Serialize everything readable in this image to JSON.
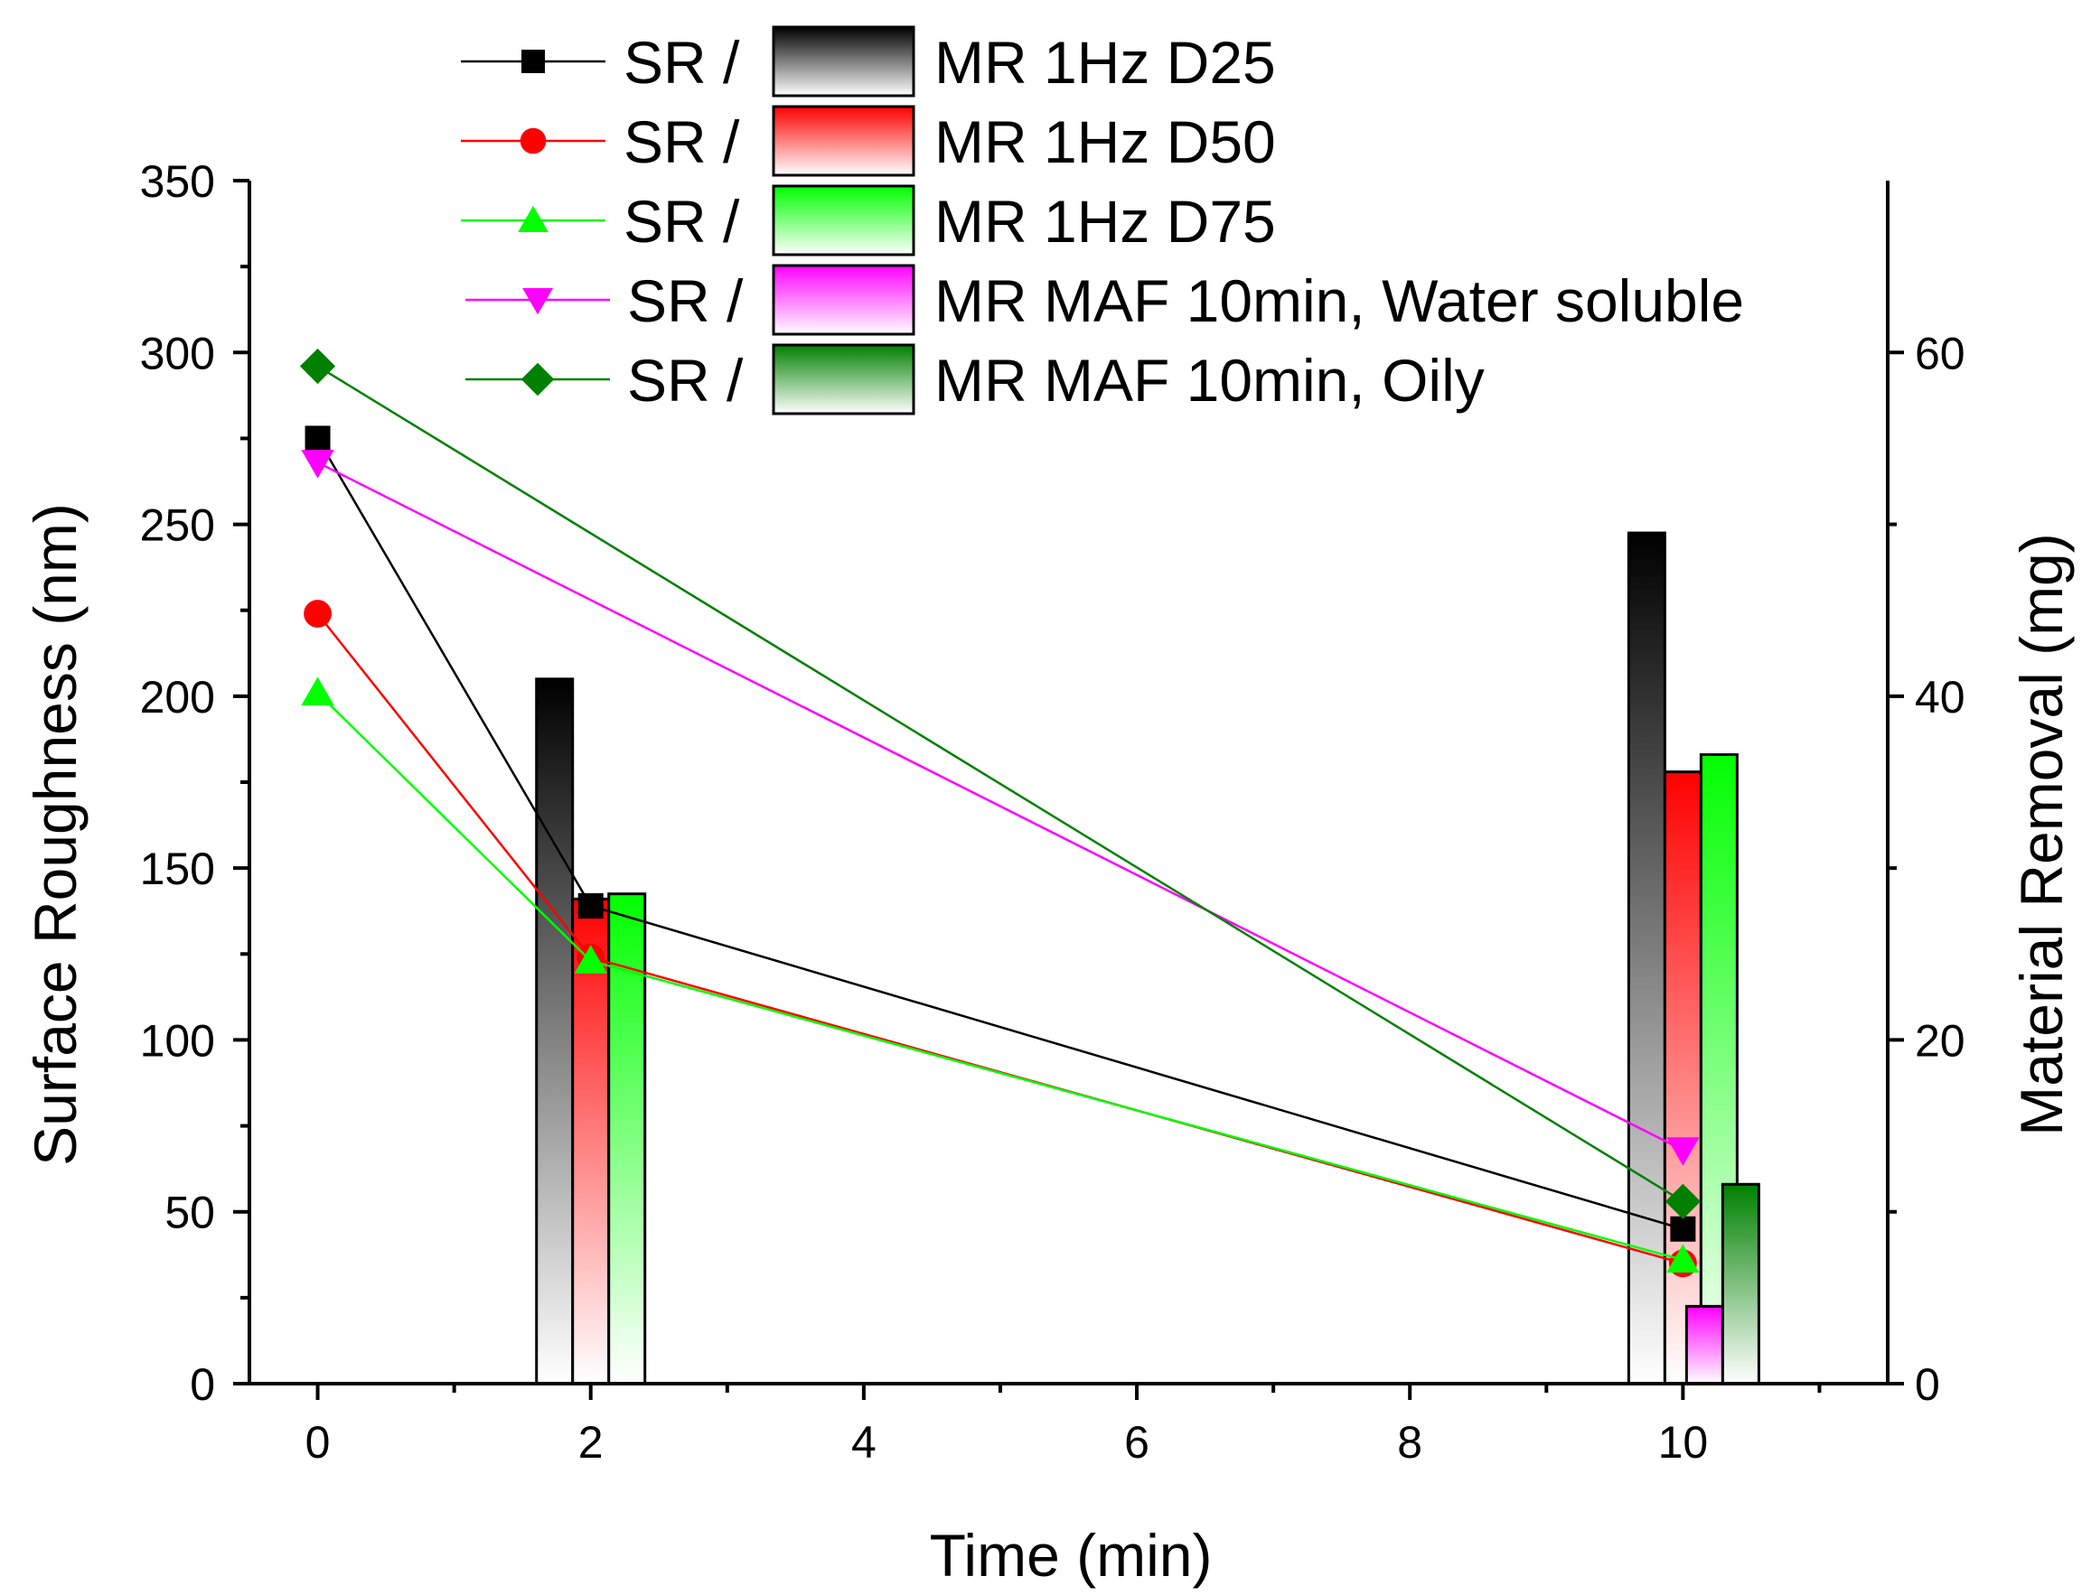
{
  "chart_data": {
    "type": "bar",
    "title": "",
    "xlabel": "Time (min)",
    "ylabel": "Surface Roughness (nm)",
    "y2label": "Material Removal (mg)",
    "xlim": [
      -0.5,
      11.5
    ],
    "ylim": [
      0,
      350
    ],
    "y2lim": [
      0,
      70
    ],
    "x_ticks": [
      0,
      2,
      4,
      6,
      8,
      10
    ],
    "y_ticks": [
      0,
      50,
      100,
      150,
      200,
      250,
      300,
      350
    ],
    "y2_ticks": [
      0,
      20,
      40,
      60
    ],
    "legend_position": "top",
    "legend_separator": "SR /",
    "line_series": [
      {
        "name": "SR",
        "color": "#000000",
        "marker": "square",
        "x": [
          0,
          2,
          10
        ],
        "values": [
          275,
          139,
          45
        ]
      },
      {
        "name": "SR",
        "color": "#ff0000",
        "marker": "circle",
        "x": [
          0,
          2,
          10
        ],
        "values": [
          224,
          124,
          35
        ]
      },
      {
        "name": "SR",
        "color": "#00ff00",
        "marker": "triangle-up",
        "x": [
          0,
          2,
          10
        ],
        "values": [
          201,
          123,
          36
        ]
      },
      {
        "name": "SR",
        "color": "#ff00ff",
        "marker": "triangle-down",
        "x": [
          0,
          10
        ],
        "values": [
          268,
          68
        ]
      },
      {
        "name": "SR",
        "color": "#008000",
        "marker": "diamond",
        "x": [
          0,
          10
        ],
        "values": [
          296,
          53
        ]
      }
    ],
    "bar_series": [
      {
        "name": "MR 1Hz D25",
        "color": "#000000",
        "x": [
          2,
          10
        ],
        "values": [
          41,
          49.5
        ],
        "offset": -1
      },
      {
        "name": "MR 1Hz D50",
        "color": "#ff0000",
        "x": [
          2,
          10
        ],
        "values": [
          28.2,
          35.6
        ],
        "offset": 0
      },
      {
        "name": "MR 1Hz D75",
        "color": "#00ff00",
        "x": [
          2,
          10
        ],
        "values": [
          28.5,
          36.6
        ],
        "offset": 1
      },
      {
        "name": "MR MAF 10min, Water soluble",
        "color": "#ff00ff",
        "x": [
          10
        ],
        "values": [
          4.5
        ],
        "offset": 0.6
      },
      {
        "name": "MR MAF 10min, Oily",
        "color": "#008000",
        "x": [
          10
        ],
        "values": [
          11.6
        ],
        "offset": 1.6
      }
    ]
  }
}
